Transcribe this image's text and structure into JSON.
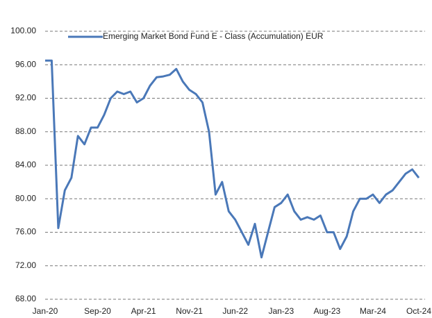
{
  "chart_data": {
    "type": "line",
    "categories": [
      "Jan-20",
      null,
      null,
      null,
      null,
      null,
      null,
      null,
      "Sep-20",
      null,
      null,
      null,
      null,
      null,
      null,
      "Apr-21",
      null,
      null,
      null,
      null,
      null,
      null,
      "Nov-21",
      null,
      null,
      null,
      null,
      null,
      null,
      "Jun-22",
      null,
      null,
      null,
      null,
      null,
      null,
      "Jan-23",
      null,
      null,
      null,
      null,
      null,
      null,
      "Aug-23",
      null,
      null,
      null,
      null,
      null,
      null,
      "Mar-24",
      null,
      null,
      null,
      null,
      null,
      null,
      "Oct-24"
    ],
    "series": [
      {
        "name": "Emerging Market Bond Fund E - Class (Accumulation) EUR",
        "color": "#4a78b8",
        "values": [
          96.5,
          96.5,
          76.5,
          81,
          82.5,
          87.5,
          86.5,
          88.5,
          88.5,
          90,
          92,
          92.8,
          92.5,
          92.8,
          91.5,
          92,
          93.5,
          94.5,
          94.6,
          94.8,
          95.5,
          94,
          93,
          92.5,
          91.5,
          88,
          80.5,
          82,
          78.5,
          77.5,
          76,
          74.5,
          77,
          73,
          76,
          79,
          79.5,
          80.5,
          78.5,
          77.5,
          77.8,
          77.5,
          78,
          76,
          76,
          74,
          75.5,
          78.5,
          80,
          80,
          80.5,
          79.5,
          80.5,
          81,
          82,
          83,
          83.5,
          82.5
        ]
      }
    ],
    "ylim": [
      68,
      100
    ],
    "yticks": [
      {
        "value": 68,
        "label": "68.00"
      },
      {
        "value": 72,
        "label": "72.00"
      },
      {
        "value": 76,
        "label": "76.00"
      },
      {
        "value": 80,
        "label": "80.00"
      },
      {
        "value": 84,
        "label": "84.00"
      },
      {
        "value": 88,
        "label": "88.00"
      },
      {
        "value": 92,
        "label": "92.00"
      },
      {
        "value": 96,
        "label": "96.00"
      },
      {
        "value": 100,
        "label": "100.00"
      }
    ],
    "grid": true,
    "legend": "top-left"
  }
}
